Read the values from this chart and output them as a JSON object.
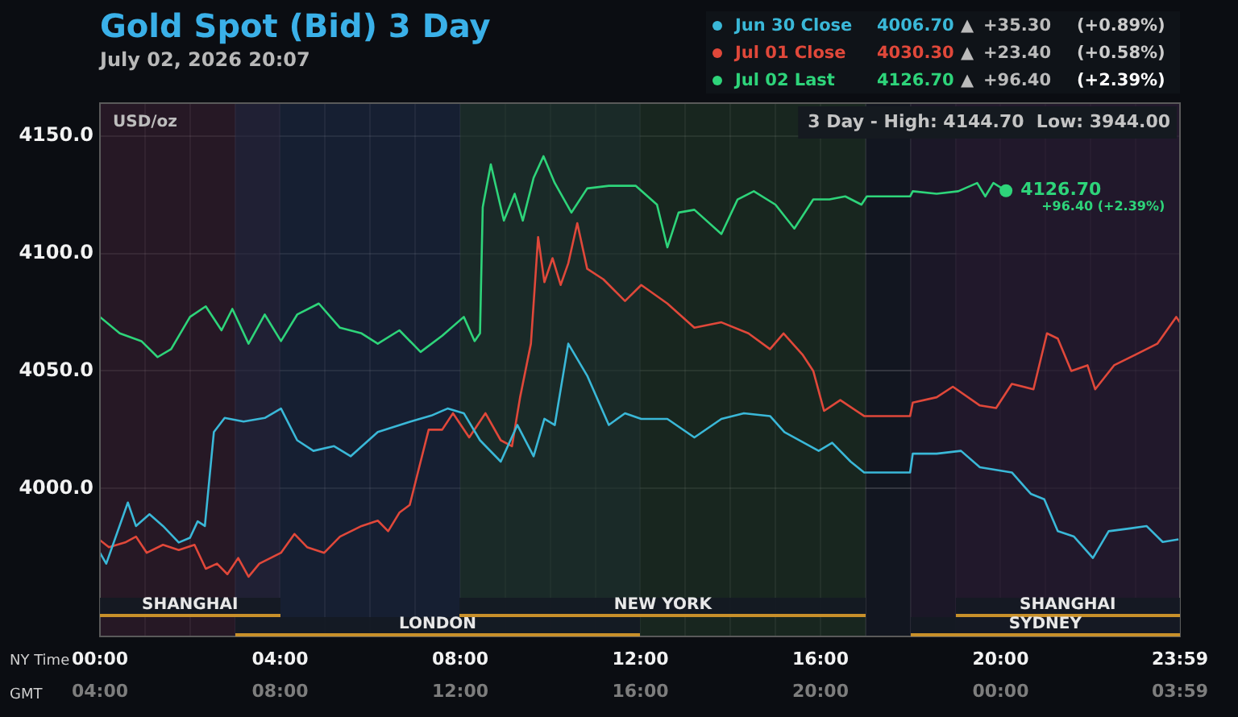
{
  "chart_data": {
    "type": "line",
    "title": "Gold Spot (Bid) 3 Day",
    "subtitle": "July 02, 2026 20:07",
    "xlabel": "NY Time",
    "x2label": "GMT",
    "xlim": [
      0,
      23.98333
    ],
    "xticks": [
      {
        "value": 0,
        "label": "00:00"
      },
      {
        "value": 1,
        "label": null
      },
      {
        "value": 2,
        "label": null
      },
      {
        "value": 3,
        "label": null
      },
      {
        "value": 4,
        "label": "04:00"
      },
      {
        "value": 5,
        "label": null
      },
      {
        "value": 6,
        "label": null
      },
      {
        "value": 7,
        "label": null
      },
      {
        "value": 8,
        "label": "08:00"
      },
      {
        "value": 9,
        "label": null
      },
      {
        "value": 10,
        "label": null
      },
      {
        "value": 11,
        "label": null
      },
      {
        "value": 12,
        "label": "12:00"
      },
      {
        "value": 13,
        "label": null
      },
      {
        "value": 14,
        "label": null
      },
      {
        "value": 15,
        "label": null
      },
      {
        "value": 16,
        "label": "16:00"
      },
      {
        "value": 17,
        "label": null
      },
      {
        "value": 18,
        "label": null
      },
      {
        "value": 19,
        "label": null
      },
      {
        "value": 20,
        "label": "20:00"
      },
      {
        "value": 21,
        "label": null
      },
      {
        "value": 22,
        "label": null
      },
      {
        "value": 23,
        "label": null
      },
      {
        "value": 23.98333,
        "label": "23:59"
      }
    ],
    "x2lim": [
      "2026-07-02T04:00",
      "2026-07-03T03:59"
    ],
    "x2ticks": [
      {
        "value": "2026-07-02T04:00",
        "label": "04:00"
      },
      {
        "value": "2026-07-02T08:00",
        "label": "08:00"
      },
      {
        "value": "2026-07-02T12:00",
        "label": "12:00"
      },
      {
        "value": "2026-07-02T16:00",
        "label": "16:00"
      },
      {
        "value": "2026-07-02T20:00",
        "label": "20:00"
      },
      {
        "value": "2026-07-03T00:00",
        "label": "00:00"
      },
      {
        "value": "2026-07-03T03:59",
        "label": "03:59"
      }
    ],
    "ylim": [
      3937,
      4164
    ],
    "yticks": [
      {
        "value": 4000,
        "label": "4000.0"
      },
      {
        "value": 4050,
        "label": "4050.0"
      },
      {
        "value": 4100,
        "label": "4100.0"
      },
      {
        "value": 4150,
        "label": "4150.0"
      }
    ],
    "grid": true,
    "legend": "top right",
    "marker": "none",
    "line_style": "solid",
    "series": [
      {
        "name": "Jun 30 Close",
        "color": "#3ab8d8",
        "x": [
          0,
          0.14,
          0.62,
          0.8,
          1.1,
          1.4,
          1.75,
          2.0,
          2.17,
          2.33,
          2.53,
          2.77,
          3.19,
          3.66,
          4.02,
          4.38,
          4.74,
          5.2,
          5.57,
          6.17,
          6.9,
          7.36,
          7.72,
          8.08,
          8.44,
          8.9,
          9.27,
          9.63,
          9.87,
          10.1,
          10.4,
          10.82,
          11.3,
          11.66,
          12.02,
          12.6,
          13.2,
          13.8,
          14.3,
          14.88,
          15.2,
          15.96,
          16.26,
          16.67,
          16.97,
          17.99,
          18.05,
          18.58,
          19.12,
          19.54,
          20.25,
          20.67,
          20.97,
          21.27,
          21.63,
          22.05,
          22.4,
          22.88,
          23.24,
          23.6,
          23.95
        ],
        "values": [
          3972.6,
          3968,
          3994,
          3984,
          3989,
          3984,
          3977,
          3979,
          3986,
          3984,
          4024,
          4030,
          4028.5,
          4030,
          4034,
          4020.5,
          4016,
          4018,
          4013.7,
          4024,
          4028.5,
          4031,
          4034,
          4032,
          4020.5,
          4011.4,
          4027,
          4013.7,
          4029.6,
          4027,
          4061.6,
          4048,
          4027,
          4032,
          4029.6,
          4029.6,
          4021.7,
          4029.6,
          4032,
          4030.8,
          4024,
          4016,
          4019.4,
          4011.4,
          4006.8,
          4006.8,
          4014.8,
          4014.8,
          4016,
          4009,
          4006.8,
          3997.7,
          3995.4,
          3981.8,
          3979.5,
          3970.4,
          3981.8,
          3983,
          3984,
          3977.2,
          3978.3
        ]
      },
      {
        "name": "Jul 01 Close",
        "color": "#e0483a",
        "x": [
          0,
          0.2,
          0.56,
          0.8,
          1.04,
          1.4,
          1.75,
          2.1,
          2.35,
          2.6,
          2.83,
          3.07,
          3.3,
          3.54,
          4.02,
          4.32,
          4.6,
          4.98,
          5.33,
          5.81,
          6.17,
          6.4,
          6.65,
          6.88,
          7.06,
          7.3,
          7.6,
          7.84,
          8.2,
          8.56,
          8.9,
          9.15,
          9.33,
          9.57,
          9.73,
          9.87,
          10.05,
          10.23,
          10.4,
          10.6,
          10.82,
          11.18,
          11.66,
          12.02,
          12.6,
          13.2,
          13.8,
          14.4,
          14.88,
          15.18,
          15.6,
          15.84,
          16.08,
          16.44,
          16.97,
          17.99,
          18.05,
          18.58,
          18.94,
          19.54,
          19.9,
          20.25,
          20.73,
          21.03,
          21.27,
          21.57,
          21.93,
          22.1,
          22.52,
          23,
          23.48,
          23.9,
          23.98
        ],
        "values": [
          3978,
          3975,
          3977,
          3979.5,
          3972.6,
          3976,
          3973.8,
          3976,
          3965.8,
          3968,
          3963.5,
          3970.4,
          3962.4,
          3968,
          3972.6,
          3980.6,
          3975,
          3972.6,
          3979.5,
          3984,
          3986.3,
          3981.8,
          3989.7,
          3993,
          4006.8,
          4025,
          4025,
          4032,
          4021.7,
          4032,
          4020.5,
          4018,
          4038.8,
          4061.6,
          4107,
          4087.8,
          4098,
          4086.6,
          4095.8,
          4112.9,
          4093.5,
          4089,
          4079.8,
          4086.6,
          4078.7,
          4068.4,
          4070.7,
          4066,
          4059.3,
          4066,
          4057,
          4050,
          4033,
          4037.6,
          4030.8,
          4030.8,
          4036.5,
          4038.8,
          4043.3,
          4035.3,
          4034.2,
          4044.5,
          4042.2,
          4066,
          4063.8,
          4050,
          4052.4,
          4042.2,
          4052.4,
          4057,
          4061.6,
          4073,
          4070.7
        ]
      },
      {
        "name": "Jul 02 Last",
        "color": "#2ed47a",
        "x": [
          0,
          0.44,
          0.92,
          1.28,
          1.58,
          2.0,
          2.35,
          2.7,
          2.94,
          3.3,
          3.66,
          4.02,
          4.38,
          4.86,
          5.33,
          5.81,
          6.17,
          6.65,
          7.12,
          7.6,
          8.08,
          8.32,
          8.44,
          8.5,
          8.68,
          8.97,
          9.21,
          9.39,
          9.63,
          9.85,
          10.1,
          10.47,
          10.82,
          11.3,
          11.9,
          12.37,
          12.6,
          12.85,
          13.2,
          13.8,
          14.16,
          14.52,
          15,
          15.42,
          15.84,
          16.2,
          16.55,
          16.91,
          17.03,
          17.99,
          18.05,
          18.58,
          19.06,
          19.48,
          19.66,
          19.84,
          20.12
        ],
        "values": [
          4073,
          4066,
          4062.7,
          4055.9,
          4059.3,
          4073,
          4077.5,
          4067.3,
          4076.4,
          4061.6,
          4074,
          4062.7,
          4074,
          4078.7,
          4068.4,
          4066,
          4061.6,
          4067.3,
          4058.1,
          4065,
          4073,
          4062.7,
          4066,
          4119.7,
          4137.9,
          4114,
          4125.4,
          4114,
          4132.2,
          4141.4,
          4130,
          4117.4,
          4127.7,
          4128.8,
          4128.8,
          4120.8,
          4102.6,
          4117.4,
          4118.6,
          4108.3,
          4123,
          4126.5,
          4120.8,
          4110.6,
          4123,
          4123,
          4124.3,
          4120.8,
          4124.3,
          4124.3,
          4126.5,
          4125.4,
          4126.5,
          4130,
          4124.3,
          4130,
          4126.7
        ]
      }
    ],
    "bands": [
      {
        "axis": "x",
        "from": 0,
        "to": 4,
        "label": "SHANGHAI",
        "color": "#3a1a2a"
      },
      {
        "axis": "x",
        "from": 3,
        "to": 12,
        "label": "LONDON",
        "color": "#1a2844"
      },
      {
        "axis": "x",
        "from": 8,
        "to": 17,
        "label": "NEW YORK",
        "color": "#1e361e"
      },
      {
        "axis": "x",
        "from": 19,
        "to": 23.98333,
        "label": "SHANGHAI",
        "color": "#2a1a30"
      },
      {
        "axis": "x",
        "from": 18,
        "to": 23.98333,
        "label": "SYDNEY",
        "color": "#24182e"
      }
    ],
    "annotations": [
      "USD/oz",
      "3 Day - High: 4144.70  Low: 3944.00",
      "4006.70 ▲ +35.30 (+0.89%)",
      "4030.30 ▲ +23.40 (+0.58%)",
      "4126.70 ▲ +96.40 (+2.39%)",
      {
        "text": "4126.70",
        "x": 20.12,
        "y": 4126.7
      },
      {
        "text": "+96.40 (+2.39%)",
        "x": 20.12,
        "y": 4126.7
      }
    ]
  }
}
